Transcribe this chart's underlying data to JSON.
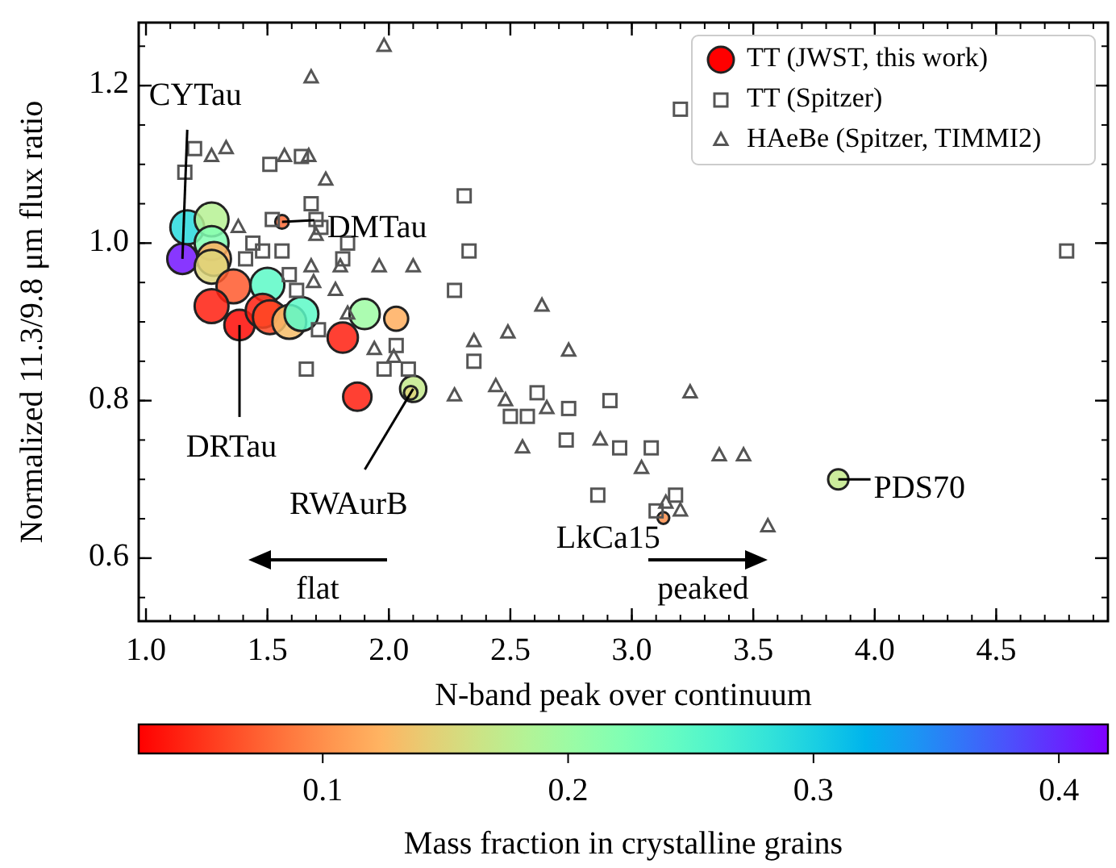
{
  "chart_data": {
    "type": "scatter",
    "xlabel": "N-band peak over continuum",
    "ylabel": "Normalized 11.3/9.8 μm flux ratio",
    "clabel": "Mass fraction in crystalline grains",
    "xlim": [
      0.97,
      4.96
    ],
    "ylim": [
      0.52,
      1.28
    ],
    "xticks": [
      {
        "value": 1,
        "label": "1.0"
      },
      {
        "value": 1.5,
        "label": "1.5"
      },
      {
        "value": 2,
        "label": "2.0"
      },
      {
        "value": 2.5,
        "label": "2.5"
      },
      {
        "value": 3,
        "label": "3.0"
      },
      {
        "value": 3.5,
        "label": "3.5"
      },
      {
        "value": 4,
        "label": "4.0"
      },
      {
        "value": 4.5,
        "label": "4.5"
      }
    ],
    "yticks": [
      {
        "value": 0.6,
        "label": "0.6"
      },
      {
        "value": 0.8,
        "label": "0.8"
      },
      {
        "value": 1,
        "label": "1.0"
      },
      {
        "value": 1.2,
        "label": "1.2"
      }
    ],
    "clim": [
      0.025,
      0.42
    ],
    "cticks": [
      0.1,
      0.2,
      0.3,
      0.4
    ],
    "legend": "top right",
    "grid": false,
    "series": [
      {
        "name": "TT (JWST, this work)",
        "type": "bubble",
        "marker": "circle",
        "x": [
          1.15,
          1.17,
          1.27,
          1.27,
          1.28,
          1.27,
          1.36,
          1.27,
          1.385,
          1.5,
          1.48,
          1.51,
          1.59,
          1.64,
          1.9,
          2.03,
          1.81,
          1.87,
          2.1,
          2.09,
          1.56,
          3.13,
          3.85
        ],
        "values": [
          0.98,
          1.02,
          1.03,
          1.0,
          0.98,
          0.97,
          0.945,
          0.92,
          0.896,
          0.947,
          0.914,
          0.906,
          0.9,
          0.91,
          0.91,
          0.904,
          0.88,
          0.805,
          0.815,
          0.81,
          1.027,
          0.651,
          0.7
        ],
        "colors": [
          "#7314ff",
          "#28dbde",
          "#b6f193",
          "#83ffb3",
          "#ffae5e",
          "#ddd67a",
          "#ff592d",
          "#ff1e0f",
          "#ff0a05",
          "#5cf9c7",
          "#ff1e0f",
          "#ff4623",
          "#f7bd68",
          "#5cf9c7",
          "#9dfba3",
          "#ffae5e",
          "#ff1e0f",
          "#ff1e0f",
          "#c3e98b",
          "#ddd67a",
          "#ff6c37",
          "#ff8f4b",
          "#c3e98b"
        ],
        "sizes": [
          0.8,
          1,
          1,
          1,
          1,
          1,
          1,
          1,
          0.8,
          1,
          1,
          1,
          1,
          1,
          0.8,
          0.5,
          0.8,
          0.7,
          0.6,
          0.16,
          0.16,
          0.12,
          0.36
        ]
      },
      {
        "name": "TT (Spitzer)",
        "type": "scatter",
        "marker": "square",
        "color": "#555555",
        "x": [
          1.2,
          1.16,
          1.51,
          1.64,
          1.68,
          1.52,
          1.7,
          1.72,
          1.83,
          1.56,
          1.48,
          1.44,
          1.41,
          1.81,
          2.31,
          2.33,
          2.27,
          1.59,
          1.62,
          1.71,
          1.66,
          2.03,
          1.98,
          2.08,
          2.35,
          2.61,
          2.74,
          2.5,
          2.57,
          2.91,
          2.73,
          2.95,
          3.08,
          2.86,
          3.1,
          3.18,
          4.79,
          3.2
        ],
        "values": [
          1.12,
          1.09,
          1.1,
          1.11,
          1.05,
          1.03,
          1.03,
          1.02,
          1.0,
          0.99,
          0.99,
          1.0,
          0.98,
          0.98,
          1.06,
          0.99,
          0.94,
          0.96,
          0.94,
          0.89,
          0.84,
          0.87,
          0.84,
          0.84,
          0.85,
          0.81,
          0.79,
          0.78,
          0.78,
          0.8,
          0.75,
          0.74,
          0.74,
          0.68,
          0.66,
          0.68,
          0.99,
          1.17
        ]
      },
      {
        "name": "HAeBe (Spitzer, TIMMI2)",
        "type": "scatter",
        "marker": "triangle",
        "color": "#555555",
        "x": [
          1.98,
          1.68,
          1.33,
          1.27,
          1.57,
          1.67,
          1.74,
          1.38,
          1.7,
          1.68,
          1.69,
          1.78,
          1.8,
          1.96,
          2.1,
          2.63,
          2.35,
          2.49,
          2.74,
          2.27,
          2.44,
          2.48,
          2.65,
          2.55,
          2.87,
          3.04,
          3.24,
          3.36,
          3.46,
          3.14,
          3.2,
          3.56,
          1.94,
          2.02,
          1.83
        ],
        "values": [
          1.25,
          1.21,
          1.12,
          1.11,
          1.11,
          1.11,
          1.08,
          1.02,
          1.01,
          0.97,
          0.95,
          0.94,
          0.97,
          0.97,
          0.97,
          0.92,
          0.875,
          0.886,
          0.863,
          0.806,
          0.818,
          0.8,
          0.79,
          0.74,
          0.75,
          0.714,
          0.81,
          0.73,
          0.73,
          0.67,
          0.66,
          0.64,
          0.865,
          0.855,
          0.91
        ]
      }
    ],
    "annotations": [
      {
        "text": "CYTau",
        "x": 1.15,
        "y": 0.98
      },
      {
        "text": "DMTau",
        "x": 1.56,
        "y": 1.027
      },
      {
        "text": "DRTau",
        "x": 1.385,
        "y": 0.896
      },
      {
        "text": "RWAurB",
        "x": 2.1,
        "y": 0.815
      },
      {
        "text": "LkCa15",
        "x": 3.13,
        "y": 0.651
      },
      {
        "text": "PDS70",
        "x": 3.85,
        "y": 0.7
      },
      "flat",
      "peaked"
    ]
  }
}
